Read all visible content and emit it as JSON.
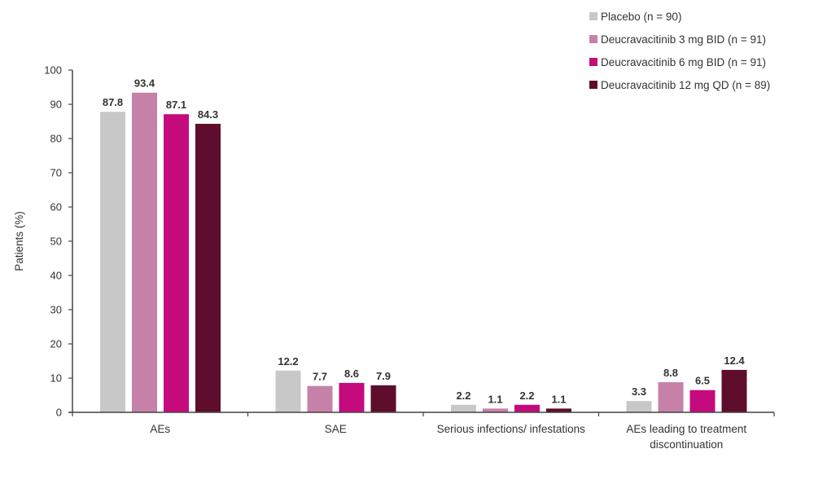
{
  "chart_data": {
    "type": "bar",
    "title": "",
    "xlabel": "",
    "ylabel": "Patients (%)",
    "ylim": [
      0,
      100
    ],
    "yticks": [
      0,
      10,
      20,
      30,
      40,
      50,
      60,
      70,
      80,
      90,
      100
    ],
    "grid": false,
    "legend_position": "top-right",
    "categories": [
      [
        "AEs"
      ],
      [
        "SAE"
      ],
      [
        "Serious infections/ infestations"
      ],
      [
        "AEs leading to treatment",
        "discontinuation"
      ]
    ],
    "series": [
      {
        "name": "Placebo (n = 90)",
        "color": "#c8c8c8",
        "values": [
          87.8,
          12.2,
          2.2,
          3.3
        ]
      },
      {
        "name": "Deucravacitinib 3 mg BID (n = 91)",
        "color": "#c681a8",
        "values": [
          93.4,
          7.7,
          1.1,
          8.8
        ]
      },
      {
        "name": "Deucravacitinib 6 mg BID (n = 91)",
        "color": "#c50a7e",
        "values": [
          87.1,
          8.6,
          2.2,
          6.5
        ]
      },
      {
        "name": "Deucravacitinib 12 mg QD (n = 89)",
        "color": "#5e0d2c",
        "values": [
          84.3,
          7.9,
          1.1,
          12.4
        ]
      }
    ]
  }
}
